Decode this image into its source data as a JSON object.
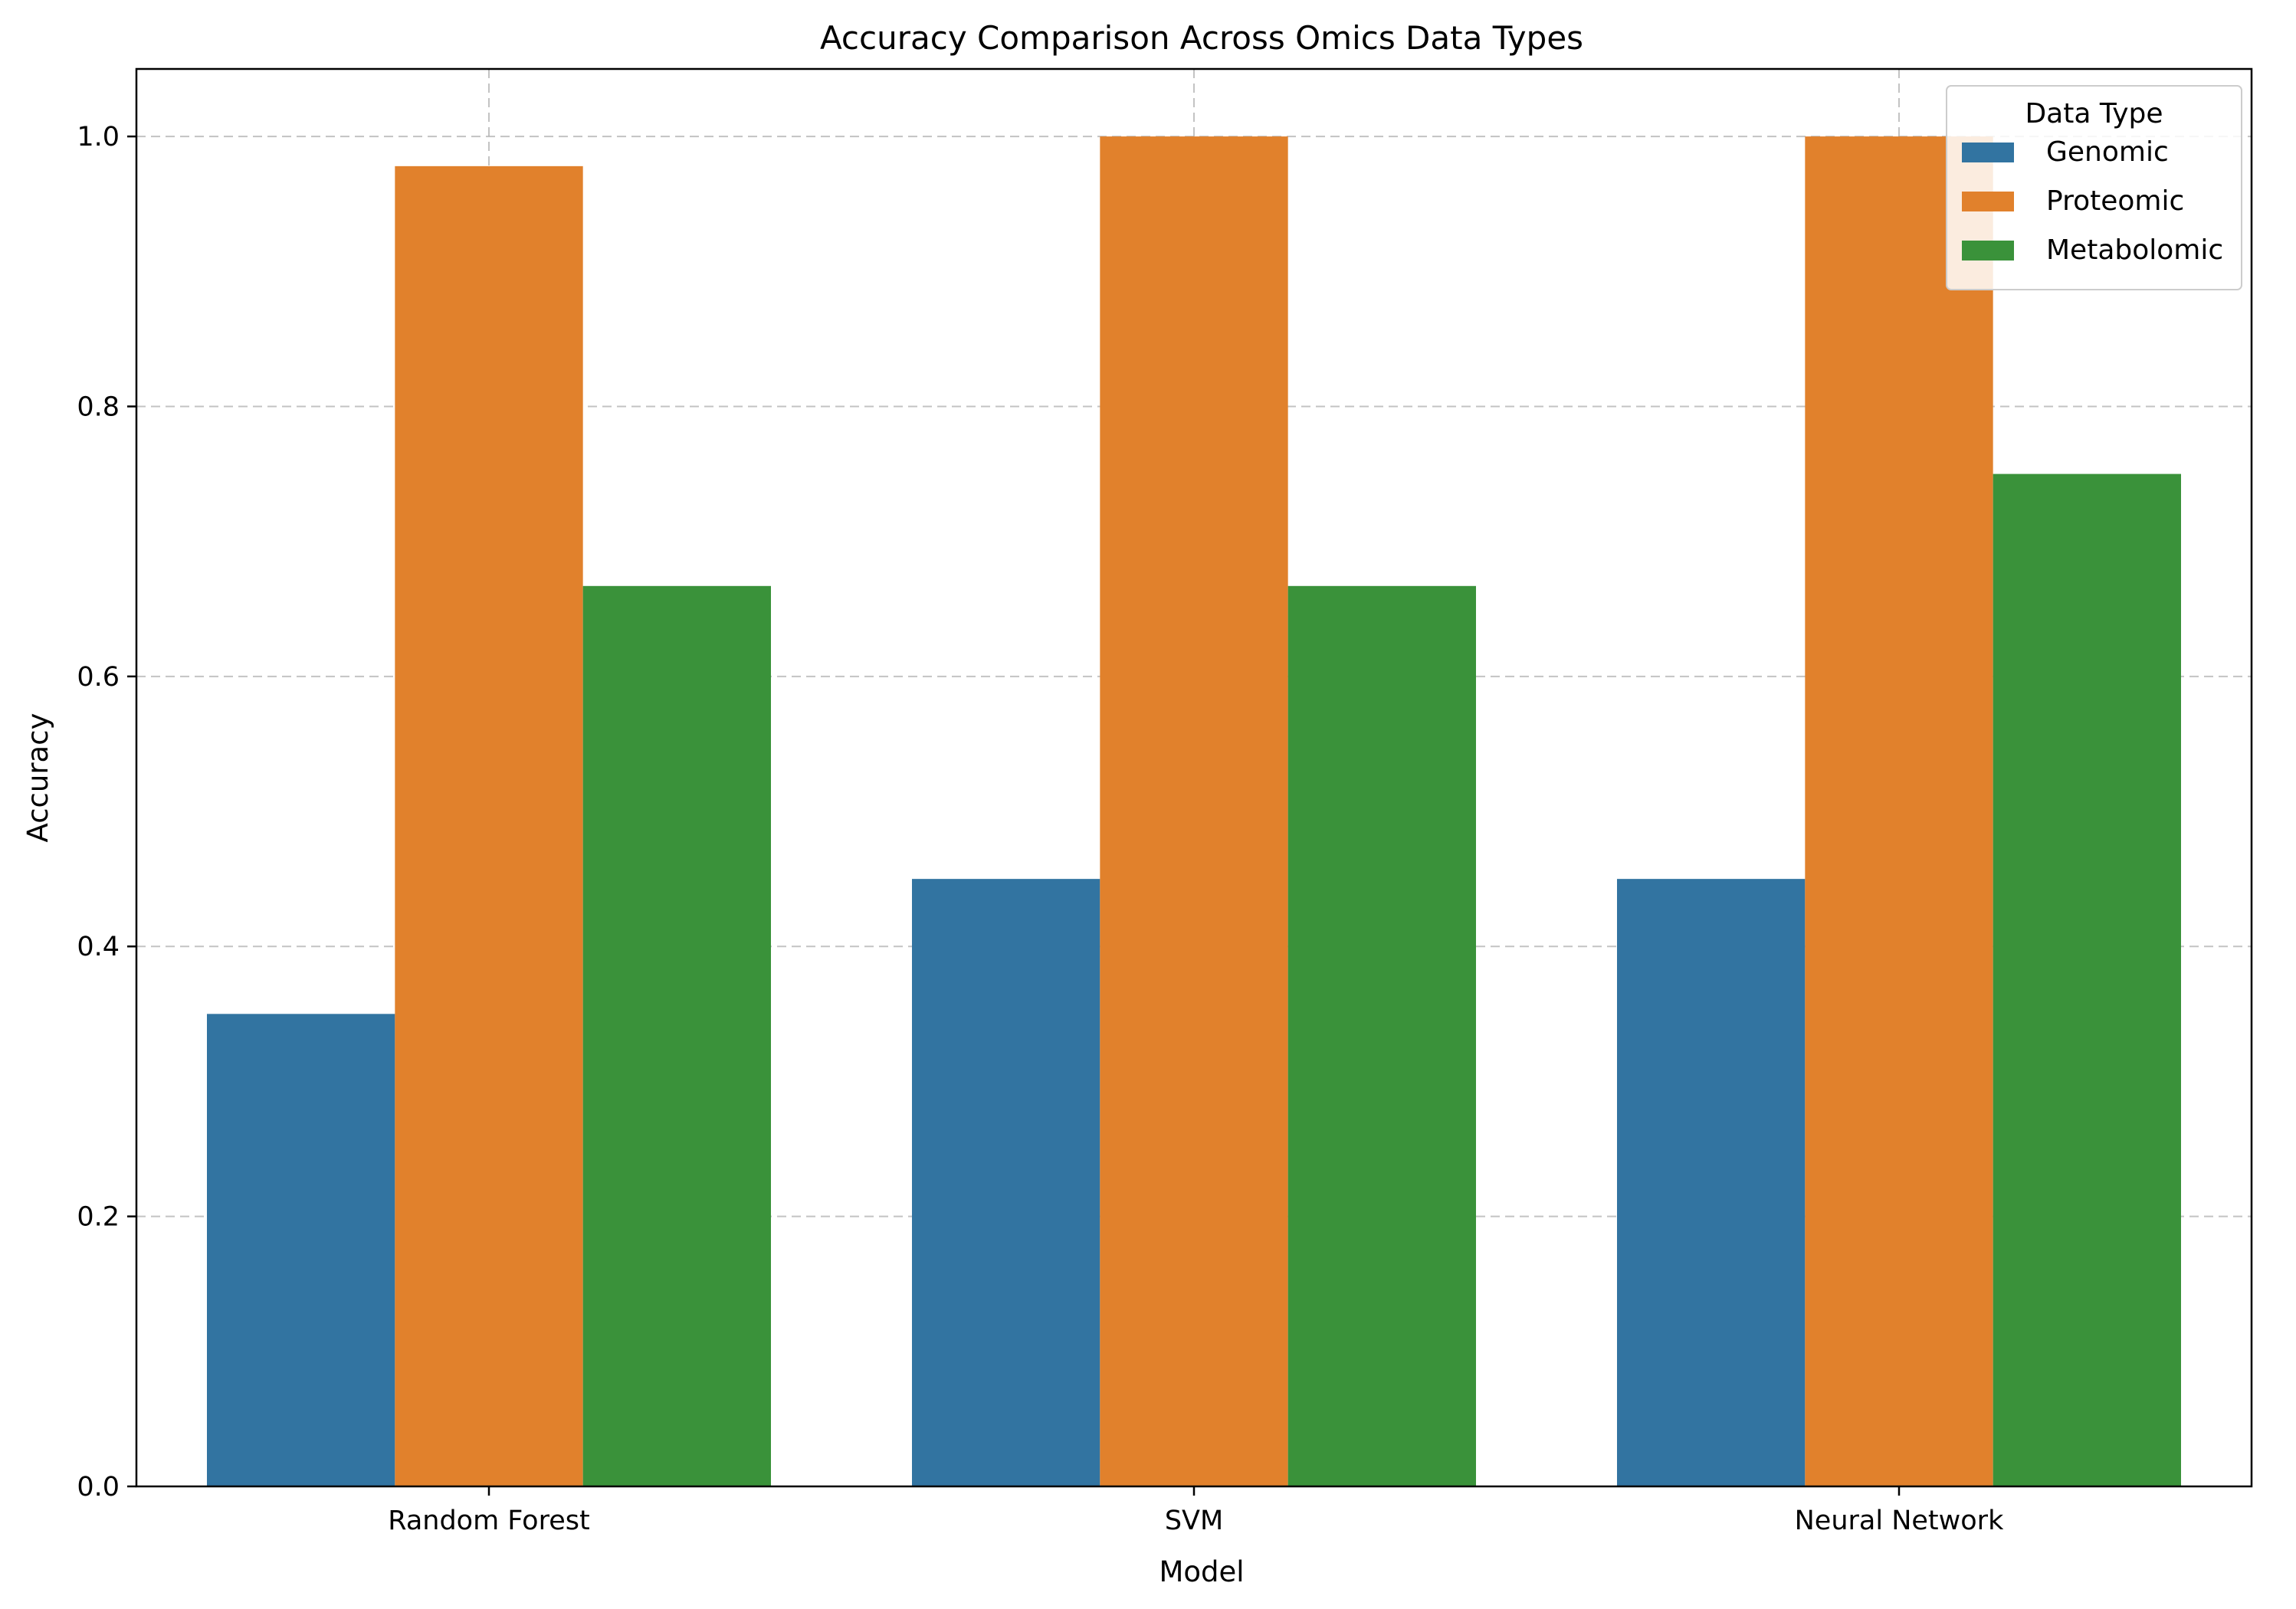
{
  "chart_data": {
    "type": "bar",
    "title": "Accuracy Comparison Across Omics Data Types",
    "xlabel": "Model",
    "ylabel": "Accuracy",
    "categories": [
      "Random Forest",
      "SVM",
      "Neural Network"
    ],
    "series": [
      {
        "name": "Genomic",
        "color": "#3274a1",
        "values": [
          0.35,
          0.45,
          0.45
        ]
      },
      {
        "name": "Proteomic",
        "color": "#e1812c",
        "values": [
          0.978,
          1.0,
          1.0
        ]
      },
      {
        "name": "Metabolomic",
        "color": "#3a923a",
        "values": [
          0.667,
          0.667,
          0.75
        ]
      }
    ],
    "ylim": [
      0,
      1.05
    ],
    "yticks": [
      0.0,
      0.2,
      0.4,
      0.6,
      0.8,
      1.0
    ],
    "ytick_labels": [
      "0.0",
      "0.2",
      "0.4",
      "0.6",
      "0.8",
      "1.0"
    ],
    "grid": true,
    "legend": {
      "title": "Data Type",
      "position": "top-right"
    }
  }
}
